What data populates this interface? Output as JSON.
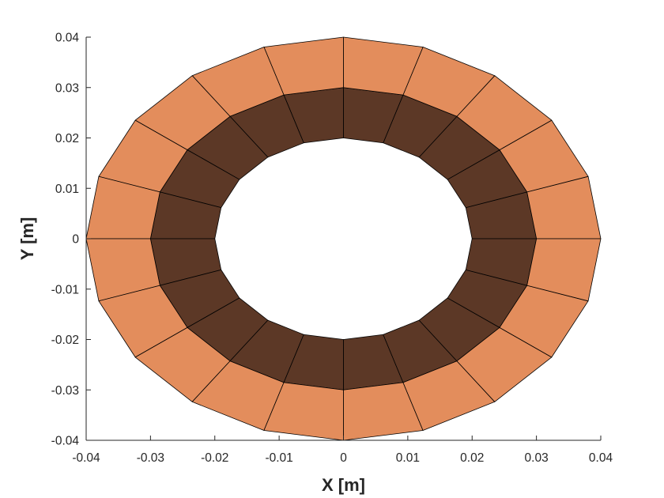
{
  "chart_data": {
    "type": "patch-mesh",
    "xlabel": "X [m]",
    "ylabel": "Y [m]",
    "xlim": [
      -0.04,
      0.04
    ],
    "ylim": [
      -0.04,
      0.04
    ],
    "xticks": [
      -0.04,
      -0.03,
      -0.02,
      -0.01,
      0,
      0.01,
      0.02,
      0.03,
      0.04
    ],
    "yticks": [
      -0.04,
      -0.03,
      -0.02,
      -0.01,
      0,
      0.01,
      0.02,
      0.03,
      0.04
    ],
    "xtick_labels": [
      "-0.04",
      "-0.03",
      "-0.02",
      "-0.01",
      "0",
      "0.01",
      "0.02",
      "0.03",
      "0.04"
    ],
    "ytick_labels": [
      "-0.04",
      "-0.03",
      "-0.02",
      "-0.01",
      "0",
      "0.01",
      "0.02",
      "0.03",
      "0.04"
    ],
    "grid": false,
    "angular_divisions": 20,
    "rings": [
      {
        "name": "inner",
        "r_inner": 0.02,
        "r_outer": 0.03,
        "color": "#5c3826"
      },
      {
        "name": "outer",
        "r_inner": 0.03,
        "r_outer": 0.04,
        "color": "#e38d5c"
      }
    ],
    "edge_color": "#000000"
  }
}
